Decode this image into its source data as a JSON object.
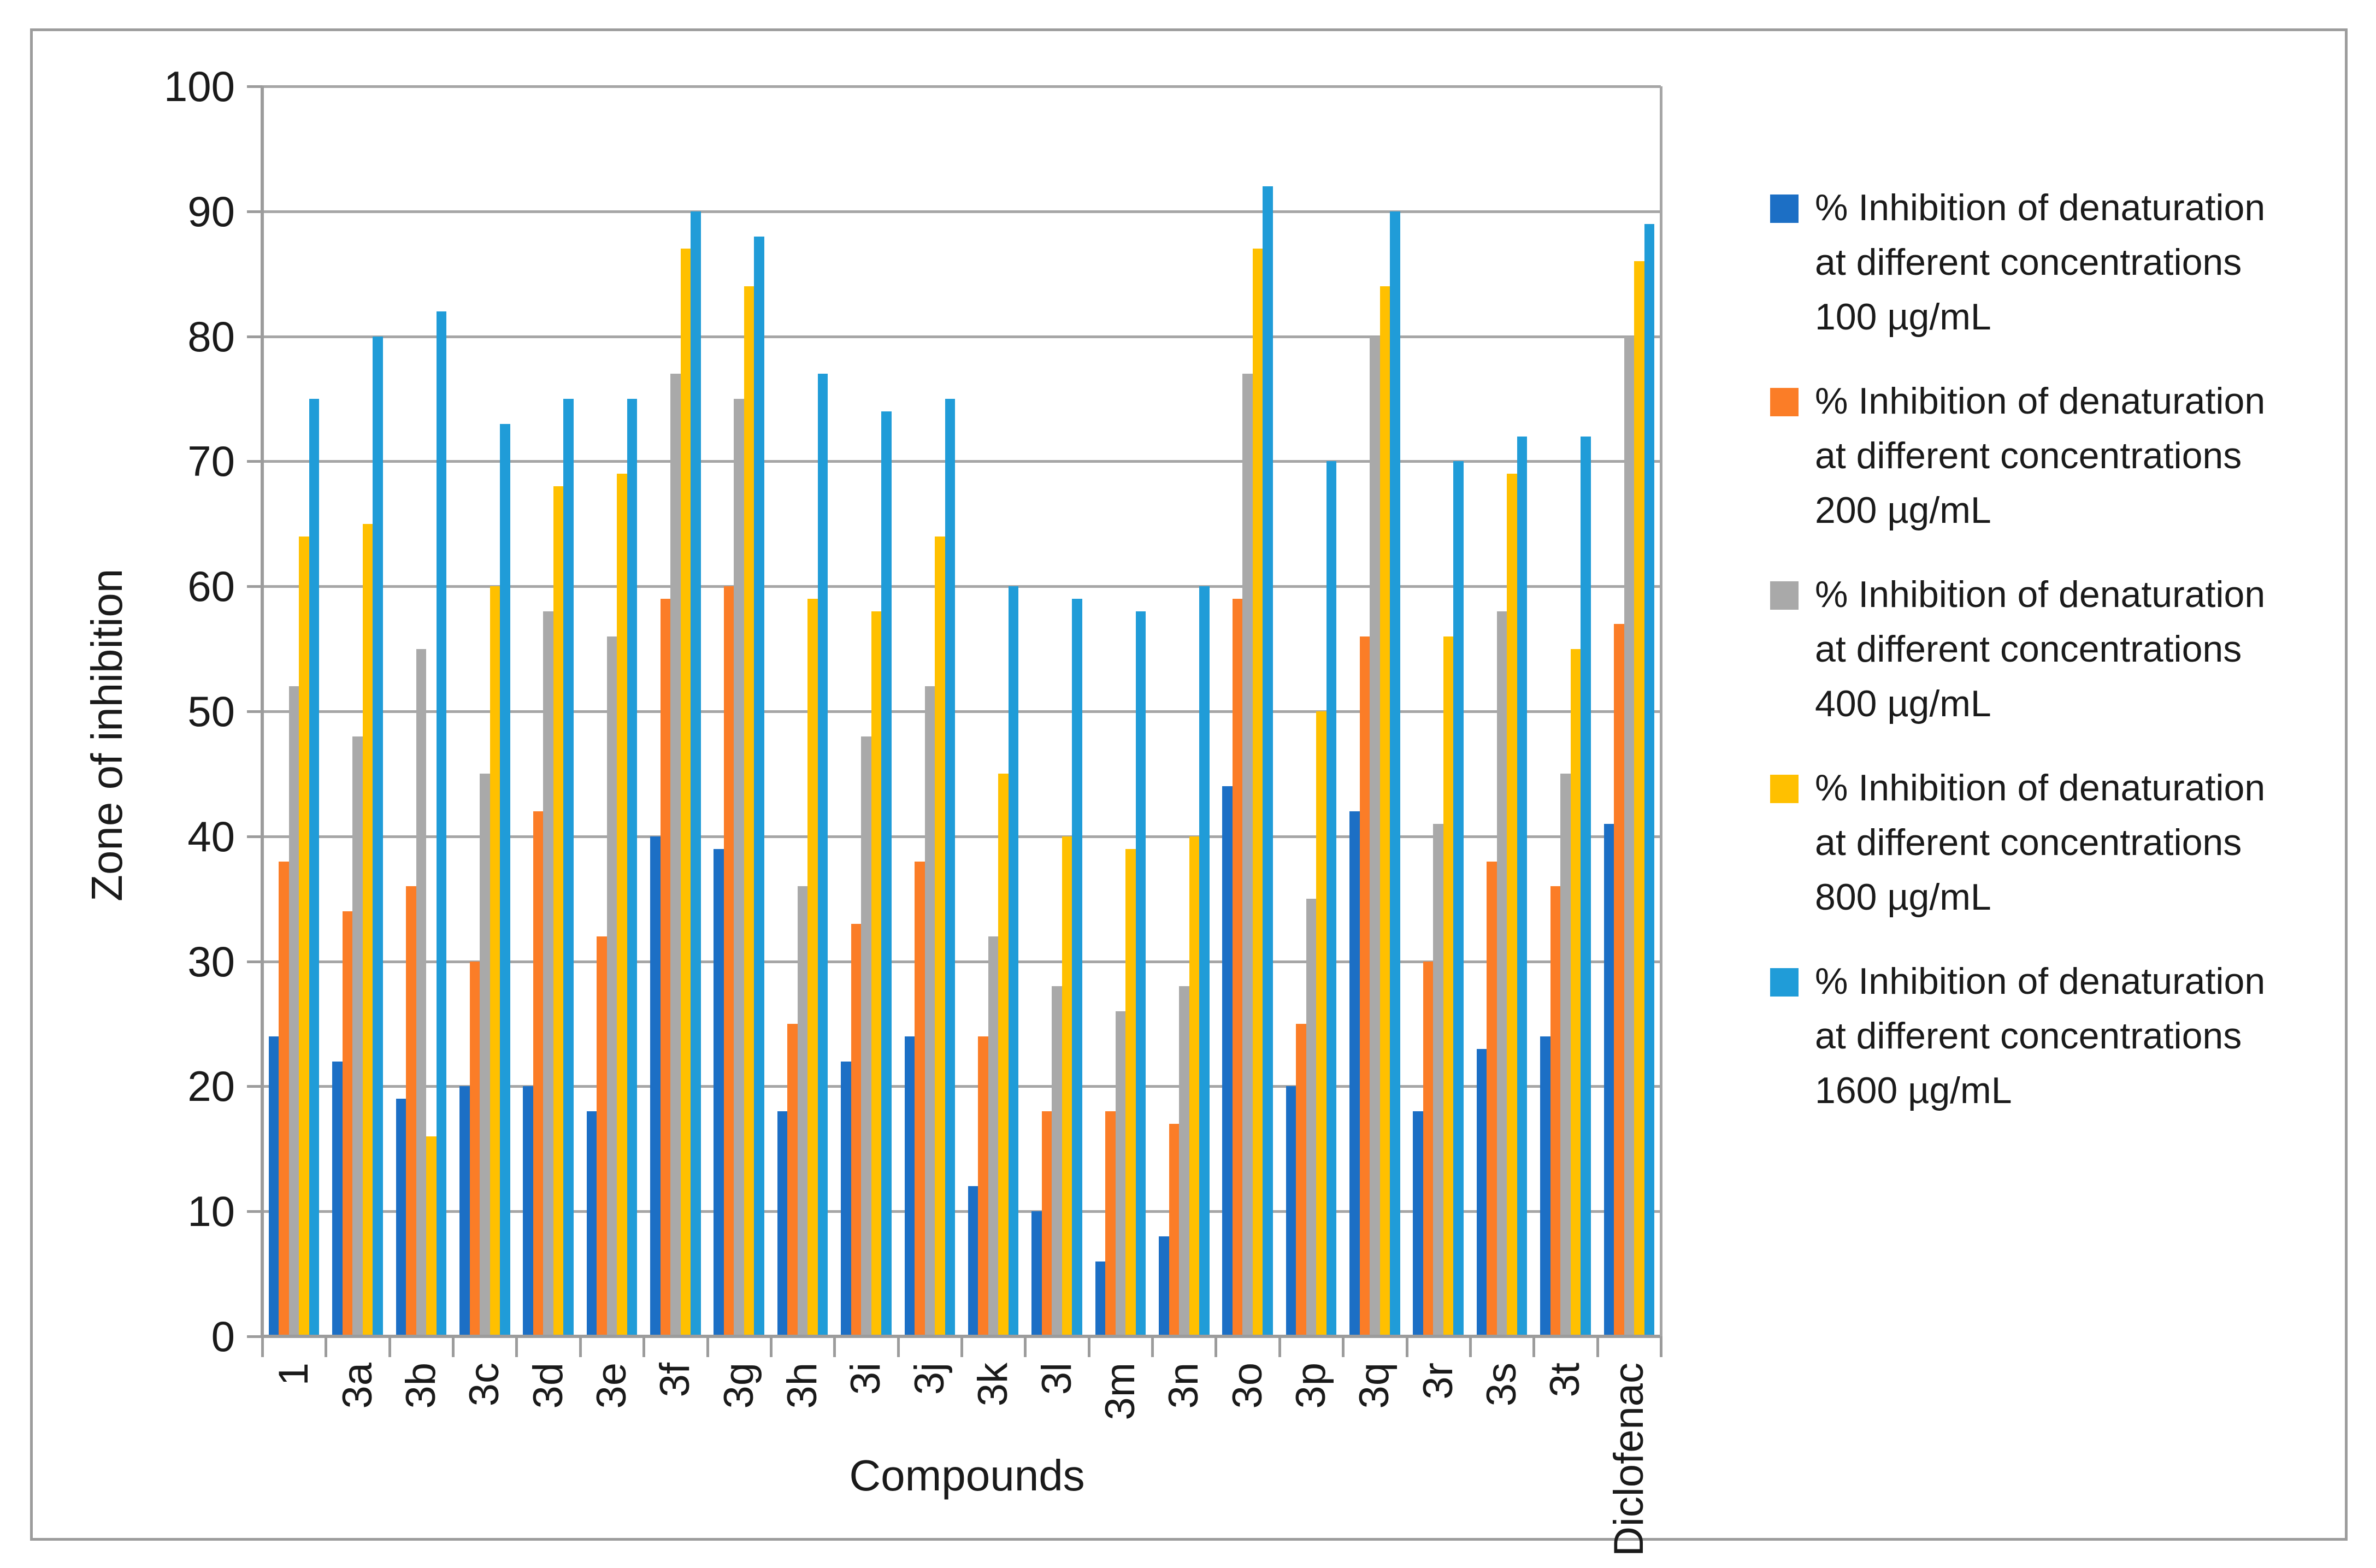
{
  "figure": {
    "background": "#ffffff",
    "border_color": "#9c9c9c",
    "gridline_color": "#a6a6a6",
    "axis_color": "#9c9c9c",
    "text_color": "#1a1a1a"
  },
  "chart_data": {
    "type": "bar",
    "title": "",
    "xlabel": "Compounds",
    "ylabel": "Zone of inhibition",
    "ylim": [
      0,
      100
    ],
    "yticks": [
      0,
      10,
      20,
      30,
      40,
      50,
      60,
      70,
      80,
      90,
      100
    ],
    "grid": true,
    "legend_position": "right",
    "categories": [
      "1",
      "3a",
      "3b",
      "3c",
      "3d",
      "3e",
      "3f",
      "3g",
      "3h",
      "3i",
      "3j",
      "3k",
      "3l",
      "3m",
      "3n",
      "3o",
      "3p",
      "3q",
      "3r",
      "3s",
      "3t",
      "Diclofenac"
    ],
    "series": [
      {
        "name": "% Inhibition of denaturation\nat different concentrations\n100 µg/mL",
        "color": "#1c6fc5",
        "values": [
          24,
          22,
          19,
          20,
          20,
          18,
          40,
          39,
          18,
          22,
          24,
          12,
          10,
          6,
          8,
          44,
          20,
          42,
          18,
          23,
          24,
          41
        ]
      },
      {
        "name": "% Inhibition of denaturation\nat different concentrations\n200 µg/mL",
        "color": "#fb7d27",
        "values": [
          38,
          34,
          36,
          30,
          42,
          32,
          59,
          60,
          25,
          33,
          38,
          24,
          18,
          18,
          17,
          59,
          25,
          56,
          30,
          38,
          36,
          57
        ]
      },
      {
        "name": "% Inhibition of denaturation\nat different concentrations\n400 µg/mL",
        "color": "#a9a9a9",
        "values": [
          52,
          48,
          55,
          45,
          58,
          56,
          77,
          75,
          36,
          48,
          52,
          32,
          28,
          26,
          28,
          77,
          35,
          80,
          41,
          58,
          45,
          80
        ]
      },
      {
        "name": "% Inhibition of denaturation\nat different concentrations\n800 µg/mL",
        "color": "#ffc000",
        "values": [
          64,
          65,
          16,
          60,
          68,
          69,
          87,
          84,
          59,
          58,
          64,
          45,
          40,
          39,
          40,
          87,
          50,
          84,
          56,
          69,
          55,
          86
        ]
      },
      {
        "name": "% Inhibition of denaturation\nat different concentrations\n1600 µg/mL",
        "color": "#209cd8",
        "values": [
          75,
          80,
          82,
          73,
          75,
          75,
          90,
          88,
          77,
          74,
          75,
          60,
          59,
          58,
          60,
          92,
          70,
          90,
          70,
          72,
          72,
          89
        ]
      }
    ]
  }
}
